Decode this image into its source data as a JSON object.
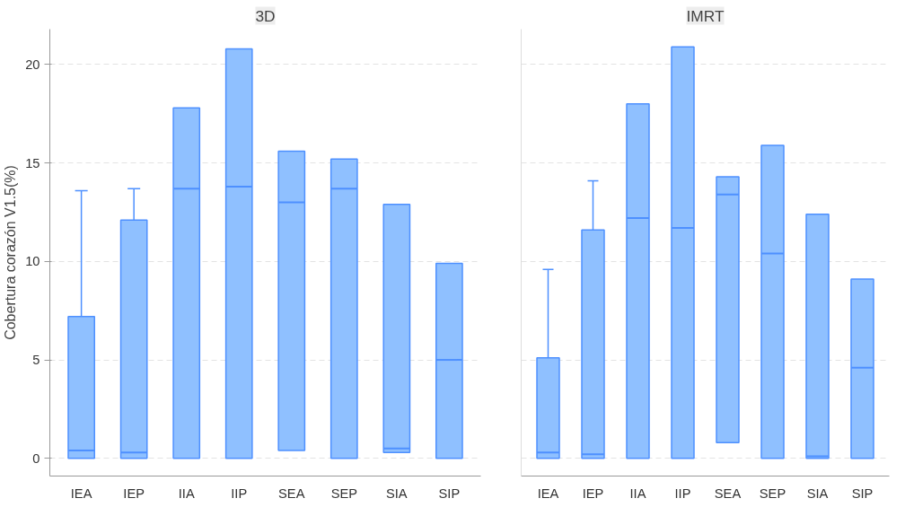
{
  "chart_data": [
    {
      "type": "box",
      "title": "3D",
      "ylabel": "Cobertura corazón V1.5(%)",
      "categories": [
        "IEA",
        "IEP",
        "IIA",
        "IIP",
        "SEA",
        "SEP",
        "SIA",
        "SIP"
      ],
      "color": "#8fc0ff",
      "ylim": [
        -0.9,
        21.8
      ],
      "yticks": [
        0,
        5,
        10,
        15,
        20
      ],
      "grid": "y",
      "boxes": [
        {
          "low": 0,
          "q1": 0,
          "median": 0.4,
          "q3": 7.2,
          "high": 13.6
        },
        {
          "low": 0,
          "q1": 0,
          "median": 0.3,
          "q3": 12.1,
          "high": 13.7
        },
        {
          "low": 0,
          "q1": 0,
          "median": 13.7,
          "q3": 17.8,
          "high": 17.8
        },
        {
          "low": 0,
          "q1": 0,
          "median": 13.8,
          "q3": 20.8,
          "high": 20.8
        },
        {
          "low": 0.4,
          "q1": 0.4,
          "median": 13.0,
          "q3": 15.6,
          "high": 15.6
        },
        {
          "low": 0,
          "q1": 0,
          "median": 13.7,
          "q3": 15.2,
          "high": 15.2
        },
        {
          "low": 0.3,
          "q1": 0.3,
          "median": 0.5,
          "q3": 12.9,
          "high": 12.9
        },
        {
          "low": 0,
          "q1": 0,
          "median": 5.0,
          "q3": 9.9,
          "high": 9.9
        }
      ]
    },
    {
      "type": "box",
      "title": "IMRT",
      "categories": [
        "IEA",
        "IEP",
        "IIA",
        "IIP",
        "SEA",
        "SEP",
        "SIA",
        "SIP"
      ],
      "color": "#8fc0ff",
      "ylim": [
        -0.9,
        21.8
      ],
      "yticks": [
        0,
        5,
        10,
        15,
        20
      ],
      "grid": "y",
      "tick_labels": "x",
      "boxes": [
        {
          "low": 0,
          "q1": 0,
          "median": 0.3,
          "q3": 5.1,
          "high": 9.6
        },
        {
          "low": 0,
          "q1": 0,
          "median": 0.2,
          "q3": 11.6,
          "high": 14.1
        },
        {
          "low": 0,
          "q1": 0,
          "median": 12.2,
          "q3": 18.0,
          "high": 18.0
        },
        {
          "low": 0,
          "q1": 0,
          "median": 11.7,
          "q3": 20.9,
          "high": 20.9
        },
        {
          "low": 0.8,
          "q1": 0.8,
          "median": 13.4,
          "q3": 14.3,
          "high": 14.3
        },
        {
          "low": 0,
          "q1": 0,
          "median": 10.4,
          "q3": 15.9,
          "high": 15.9
        },
        {
          "low": 0,
          "q1": 0,
          "median": 0.1,
          "q3": 12.4,
          "high": 12.4
        },
        {
          "low": 0,
          "q1": 0,
          "median": 4.6,
          "q3": 9.1,
          "high": 9.1
        }
      ]
    }
  ]
}
